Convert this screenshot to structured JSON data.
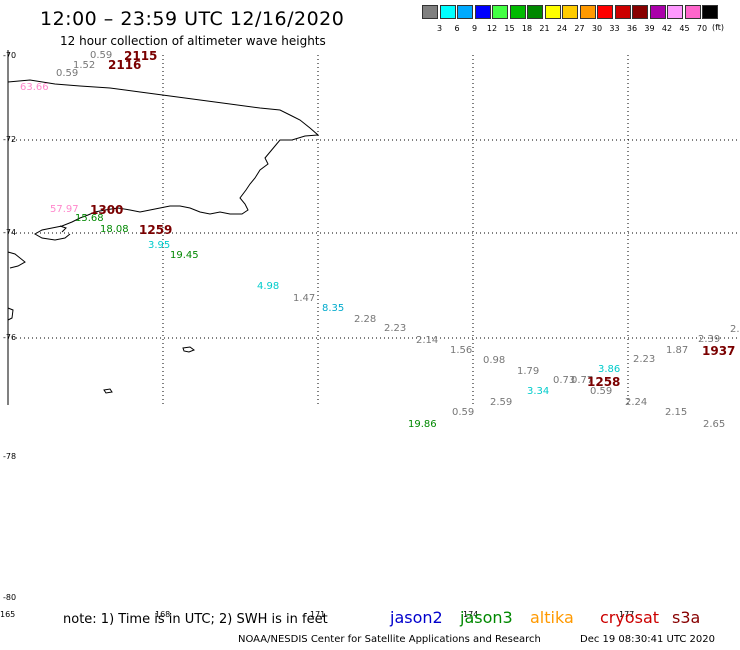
{
  "header": {
    "title": "12:00 – 23:59 UTC 12/16/2020",
    "subtitle": "12 hour collection of altimeter wave heights"
  },
  "legend": {
    "unit": "(ft)",
    "colors": [
      "#808080",
      "#00ffff",
      "#00aaff",
      "#0000ff",
      "#44ff44",
      "#00bb00",
      "#008800",
      "#ffff00",
      "#ffcc00",
      "#ff9900",
      "#ff0000",
      "#cc0000",
      "#880000",
      "#aa00aa",
      "#ff99ff",
      "#ff66cc",
      "#000000"
    ],
    "labels": [
      "3",
      "6",
      "9",
      "12",
      "15",
      "18",
      "21",
      "24",
      "27",
      "30",
      "33",
      "36",
      "39",
      "42",
      "45",
      "70"
    ]
  },
  "axes": {
    "lat_labels": [
      "-70",
      "-72",
      "-74",
      "-76",
      "-78",
      "-80"
    ],
    "lon_labels": [
      "165",
      "168",
      "171",
      "174",
      "177"
    ]
  },
  "observations": [
    {
      "text": "0.59",
      "color": "#777777"
    },
    {
      "text": "2115",
      "color": "#7a0000",
      "kind": "time"
    },
    {
      "text": "1.52",
      "color": "#777777"
    },
    {
      "text": "2116",
      "color": "#7a0000",
      "kind": "time"
    },
    {
      "text": "0.59",
      "color": "#777777"
    },
    {
      "text": "63.66",
      "color": "#ff88cc"
    },
    {
      "text": "57.97",
      "color": "#ff88cc"
    },
    {
      "text": "1300",
      "color": "#7a0000",
      "kind": "time"
    },
    {
      "text": "15.68",
      "color": "#008800"
    },
    {
      "text": "18.08",
      "color": "#008800"
    },
    {
      "text": "1259",
      "color": "#7a0000",
      "kind": "time"
    },
    {
      "text": "3.95",
      "color": "#00cccc"
    },
    {
      "text": "19.45",
      "color": "#008800"
    },
    {
      "text": "4.98",
      "color": "#00cccc"
    },
    {
      "text": "1.47",
      "color": "#777777"
    },
    {
      "text": "8.35",
      "color": "#00aacc"
    },
    {
      "text": "2.28",
      "color": "#777777"
    },
    {
      "text": "2.23",
      "color": "#777777"
    },
    {
      "text": "2.14",
      "color": "#777777"
    },
    {
      "text": "1.56",
      "color": "#777777"
    },
    {
      "text": "0.98",
      "color": "#777777"
    },
    {
      "text": "1.79",
      "color": "#777777"
    },
    {
      "text": "0.73",
      "color": "#777777"
    },
    {
      "text": "0.77",
      "color": "#777777"
    },
    {
      "text": "1258",
      "color": "#7a0000",
      "kind": "time"
    },
    {
      "text": "3.86",
      "color": "#00cccc"
    },
    {
      "text": "3.34",
      "color": "#00cccc"
    },
    {
      "text": "0.59",
      "color": "#777777"
    },
    {
      "text": "2.59",
      "color": "#777777"
    },
    {
      "text": "0.59",
      "color": "#777777"
    },
    {
      "text": "19.86",
      "color": "#008800"
    },
    {
      "text": "2.23",
      "color": "#777777"
    },
    {
      "text": "1.87",
      "color": "#777777"
    },
    {
      "text": "2.39",
      "color": "#777777"
    },
    {
      "text": "2.",
      "color": "#777777"
    },
    {
      "text": "1937",
      "color": "#7a0000",
      "kind": "time"
    },
    {
      "text": "2.24",
      "color": "#777777"
    },
    {
      "text": "2.15",
      "color": "#777777"
    },
    {
      "text": "2.65",
      "color": "#777777"
    }
  ],
  "footer": {
    "note": "note:  1) Time is in UTC;  2) SWH is in feet",
    "satellites": [
      {
        "name": "jason2",
        "color": "#0000cc"
      },
      {
        "name": "jason3",
        "color": "#008800"
      },
      {
        "name": "altika",
        "color": "#ff9900"
      },
      {
        "name": "cryosat",
        "color": "#cc0000"
      },
      {
        "name": "s3a",
        "color": "#880000"
      }
    ],
    "source": "NOAA/NESDIS Center for Satellite Applications and Research",
    "date": "Dec 19 08:30:41 UTC 2020"
  }
}
